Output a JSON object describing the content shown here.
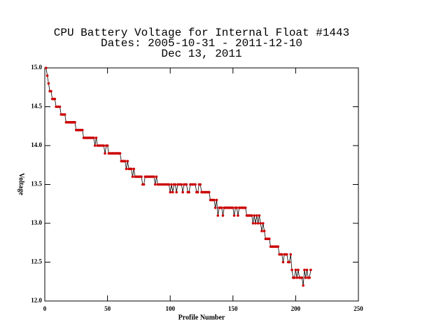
{
  "chart_data": {
    "type": "line",
    "title": [
      "CPU Battery Voltage for Internal Float #1443",
      "Dates:  2005-10-31 -  2011-12-10",
      "Dec 13, 2011"
    ],
    "xlabel": "Profile Number",
    "ylabel": "Voltage",
    "xlim": [
      0,
      250
    ],
    "xticks": [
      0,
      50,
      100,
      150,
      200,
      250
    ],
    "ylim": [
      12,
      15
    ],
    "yticks": [
      {
        "value": 12,
        "label": "12.0"
      },
      12.5,
      {
        "value": 13,
        "label": "13.0"
      },
      13.5,
      {
        "value": 14,
        "label": "14.0"
      },
      14.5,
      {
        "value": 15,
        "label": "15.0"
      }
    ],
    "line_color": "#000000",
    "marker_color": "#cc0000",
    "x": [
      1,
      2,
      3,
      4,
      5,
      6,
      7,
      8,
      9,
      10,
      11,
      12,
      13,
      14,
      15,
      16,
      17,
      18,
      19,
      20,
      21,
      22,
      23,
      24,
      25,
      26,
      27,
      28,
      29,
      30,
      31,
      32,
      33,
      34,
      35,
      36,
      37,
      38,
      39,
      40,
      41,
      42,
      43,
      44,
      45,
      46,
      47,
      48,
      49,
      50,
      51,
      52,
      53,
      54,
      55,
      56,
      57,
      58,
      59,
      60,
      61,
      62,
      63,
      64,
      65,
      66,
      67,
      68,
      69,
      70,
      71,
      72,
      73,
      74,
      75,
      76,
      77,
      78,
      79,
      80,
      81,
      82,
      83,
      84,
      85,
      86,
      87,
      88,
      89,
      90,
      91,
      92,
      93,
      94,
      95,
      96,
      97,
      98,
      99,
      100,
      101,
      102,
      103,
      104,
      105,
      106,
      107,
      108,
      109,
      110,
      111,
      112,
      113,
      114,
      115,
      116,
      117,
      118,
      119,
      120,
      121,
      122,
      123,
      124,
      125,
      126,
      127,
      128,
      129,
      130,
      131,
      132,
      133,
      134,
      135,
      136,
      137,
      138,
      139,
      140,
      141,
      142,
      143,
      144,
      145,
      146,
      147,
      148,
      149,
      150,
      151,
      152,
      153,
      154,
      155,
      156,
      157,
      158,
      159,
      160,
      161,
      162,
      163,
      164,
      165,
      166,
      167,
      168,
      169,
      170,
      171,
      172,
      173,
      174,
      175,
      176,
      177,
      178,
      179,
      180,
      181,
      182,
      183,
      184,
      185,
      186,
      187,
      188,
      189,
      190,
      191,
      192,
      193,
      194,
      195,
      196,
      197,
      198,
      199,
      200,
      201,
      202,
      203,
      204,
      205,
      206,
      207,
      208,
      209,
      210,
      211,
      212
    ],
    "values": [
      15.0,
      14.9,
      14.8,
      14.7,
      14.7,
      14.6,
      14.6,
      14.6,
      14.5,
      14.5,
      14.5,
      14.5,
      14.4,
      14.4,
      14.4,
      14.4,
      14.3,
      14.3,
      14.3,
      14.3,
      14.3,
      14.3,
      14.3,
      14.3,
      14.2,
      14.2,
      14.2,
      14.2,
      14.2,
      14.2,
      14.1,
      14.1,
      14.1,
      14.1,
      14.1,
      14.1,
      14.1,
      14.1,
      14.1,
      14.0,
      14.1,
      14.0,
      14.0,
      14.0,
      14.0,
      14.0,
      14.0,
      13.9,
      14.0,
      14.0,
      13.9,
      13.9,
      13.9,
      13.9,
      13.9,
      13.9,
      13.9,
      13.9,
      13.9,
      13.9,
      13.8,
      13.8,
      13.8,
      13.8,
      13.7,
      13.8,
      13.7,
      13.7,
      13.7,
      13.6,
      13.7,
      13.6,
      13.6,
      13.6,
      13.6,
      13.6,
      13.6,
      13.5,
      13.5,
      13.6,
      13.6,
      13.6,
      13.6,
      13.6,
      13.6,
      13.6,
      13.6,
      13.5,
      13.6,
      13.5,
      13.5,
      13.5,
      13.5,
      13.5,
      13.5,
      13.5,
      13.5,
      13.5,
      13.5,
      13.4,
      13.5,
      13.4,
      13.5,
      13.5,
      13.4,
      13.5,
      13.5,
      13.5,
      13.5,
      13.4,
      13.5,
      13.5,
      13.5,
      13.4,
      13.4,
      13.5,
      13.5,
      13.5,
      13.5,
      13.5,
      13.4,
      13.4,
      13.5,
      13.5,
      13.4,
      13.4,
      13.4,
      13.4,
      13.4,
      13.4,
      13.4,
      13.3,
      13.3,
      13.3,
      13.3,
      13.2,
      13.3,
      13.1,
      13.2,
      13.2,
      13.2,
      13.1,
      13.2,
      13.2,
      13.2,
      13.2,
      13.2,
      13.2,
      13.2,
      13.2,
      13.1,
      13.2,
      13.2,
      13.1,
      13.2,
      13.2,
      13.2,
      13.2,
      13.2,
      13.2,
      13.1,
      13.1,
      13.1,
      13.1,
      13.1,
      13.0,
      13.1,
      13.0,
      13.1,
      13.0,
      13.1,
      13.0,
      12.9,
      13.0,
      12.9,
      12.8,
      12.8,
      12.8,
      12.8,
      12.7,
      12.7,
      12.7,
      12.7,
      12.7,
      12.7,
      12.7,
      12.6,
      12.6,
      12.6,
      12.5,
      12.6,
      12.6,
      12.6,
      12.5,
      12.5,
      12.6,
      12.4,
      12.3,
      12.3,
      12.4,
      12.3,
      12.4,
      12.3,
      12.3,
      12.3,
      12.2,
      12.4,
      12.3,
      12.4,
      12.3,
      12.3,
      12.4
    ]
  }
}
